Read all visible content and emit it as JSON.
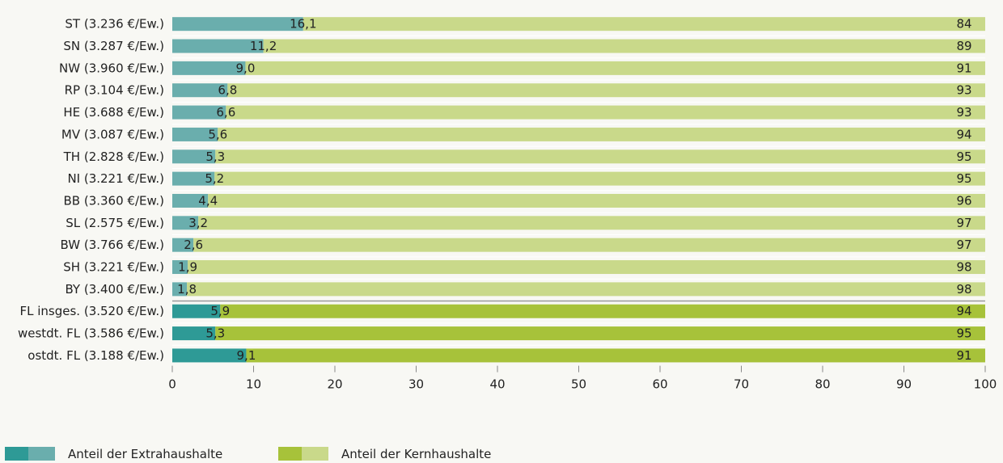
{
  "chart_data": {
    "type": "bar",
    "orientation": "horizontal",
    "stacked": true,
    "categories": [
      "ST (3.236 €/Ew.)",
      "SN (3.287 €/Ew.)",
      "NW (3.960 €/Ew.)",
      "RP (3.104 €/Ew.)",
      "HE (3.688 €/Ew.)",
      "MV (3.087 €/Ew.)",
      "TH (2.828 €/Ew.)",
      "NI (3.221 €/Ew.)",
      "BB (3.360 €/Ew.)",
      "SL (2.575 €/Ew.)",
      "BW (3.766 €/Ew.)",
      "SH (3.221 €/Ew.)",
      "BY (3.400 €/Ew.)",
      "FL insges. (3.520 €/Ew.)",
      "westdt. FL (3.586 €/Ew.)",
      "ostdt. FL (3.188 €/Ew.)"
    ],
    "series": [
      {
        "name": "Anteil der Extrahaushalte",
        "values": [
          16.1,
          11.2,
          9.0,
          6.8,
          6.6,
          5.6,
          5.3,
          5.2,
          4.4,
          3.2,
          2.6,
          1.9,
          1.8,
          5.9,
          5.3,
          9.1
        ],
        "labels": [
          "16,1",
          "11,2",
          "9,0",
          "6,8",
          "6,6",
          "5,6",
          "5,3",
          "5,2",
          "4,4",
          "3,2",
          "2,6",
          "1,9",
          "1,8",
          "5,9",
          "5,3",
          "9,1"
        ]
      },
      {
        "name": "Anteil der Kernhaushalte",
        "values": [
          84,
          89,
          91,
          93,
          93,
          94,
          95,
          95,
          96,
          97,
          97,
          98,
          98,
          94,
          95,
          91
        ],
        "labels": [
          "84",
          "89",
          "91",
          "93",
          "93",
          "94",
          "95",
          "95",
          "96",
          "97",
          "97",
          "98",
          "98",
          "94",
          "95",
          "91"
        ]
      }
    ],
    "xlim": [
      0,
      100
    ],
    "xticks": [
      "0",
      "10",
      "20",
      "30",
      "40",
      "50",
      "60",
      "70",
      "80",
      "90",
      "100"
    ],
    "grid": false,
    "legend_position": "bottom-left",
    "colors": {
      "extra_states": "#6aaead",
      "kern_states": "#c9d98a",
      "extra_aggregates": "#2e9a96",
      "kern_aggregates": "#a7c23a",
      "separator": "#ffffff"
    },
    "aggregate_start_index": 13
  }
}
